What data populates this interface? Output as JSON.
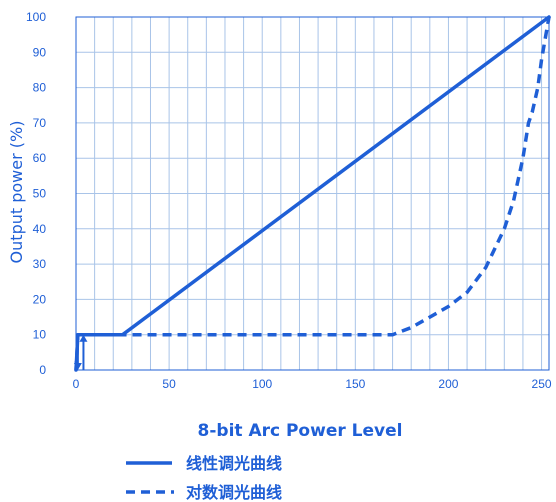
{
  "colors": {
    "series": "#1f5fd6",
    "grid": "#a9c4e8",
    "text": "#1f5fd6"
  },
  "chart_data": {
    "type": "line",
    "xlabel": "8-bit Arc Power Level",
    "ylabel": "Output power (%)",
    "xlim": [
      0,
      254
    ],
    "ylim": [
      0,
      100
    ],
    "x_ticks": [
      0,
      50,
      100,
      150,
      200,
      250
    ],
    "y_ticks": [
      0,
      10,
      20,
      30,
      40,
      50,
      60,
      70,
      80,
      90,
      100
    ],
    "grid": true,
    "legend_position": "bottom",
    "series": [
      {
        "name": "线性调光曲线",
        "style": "solid",
        "x": [
          0,
          1,
          25,
          254
        ],
        "y": [
          0,
          10,
          10,
          100
        ]
      },
      {
        "name": "对数调光曲线",
        "style": "dashed",
        "x": [
          0,
          1,
          170,
          180,
          190,
          200,
          210,
          220,
          230,
          235,
          240,
          243,
          245,
          248,
          250,
          252,
          254
        ],
        "y": [
          0,
          10,
          10,
          12,
          15,
          18,
          22,
          29,
          40,
          48,
          60,
          70,
          73,
          80,
          88,
          94,
          100
        ]
      }
    ],
    "annotations": [
      {
        "type": "arrow-down",
        "x": 1,
        "y_from": 10,
        "y_to": 0
      },
      {
        "type": "arrow-up",
        "x": 4,
        "y_from": 0,
        "y_to": 10
      }
    ]
  }
}
